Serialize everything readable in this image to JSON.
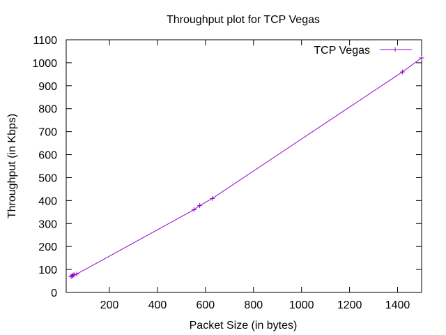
{
  "chart_data": {
    "type": "line",
    "title": "Throughput plot for TCP Vegas",
    "xlabel": "Packet Size (in bytes)",
    "ylabel": "Throughput (in Kbps)",
    "xlim": [
      20,
      1500
    ],
    "ylim": [
      0,
      1100
    ],
    "xticks": [
      200,
      400,
      600,
      800,
      1000,
      1200,
      1400
    ],
    "yticks": [
      0,
      100,
      200,
      300,
      400,
      500,
      600,
      700,
      800,
      900,
      1000,
      1100
    ],
    "grid": false,
    "legend_position": "top-right",
    "series": [
      {
        "name": "TCP Vegas",
        "color": "#9400d3",
        "marker": "plus",
        "x": [
          40,
          44,
          48,
          52,
          64,
          552,
          576,
          628,
          1420,
          1500
        ],
        "y": [
          69,
          72,
          74,
          77,
          80,
          360,
          378,
          409,
          960,
          1021
        ]
      }
    ]
  }
}
